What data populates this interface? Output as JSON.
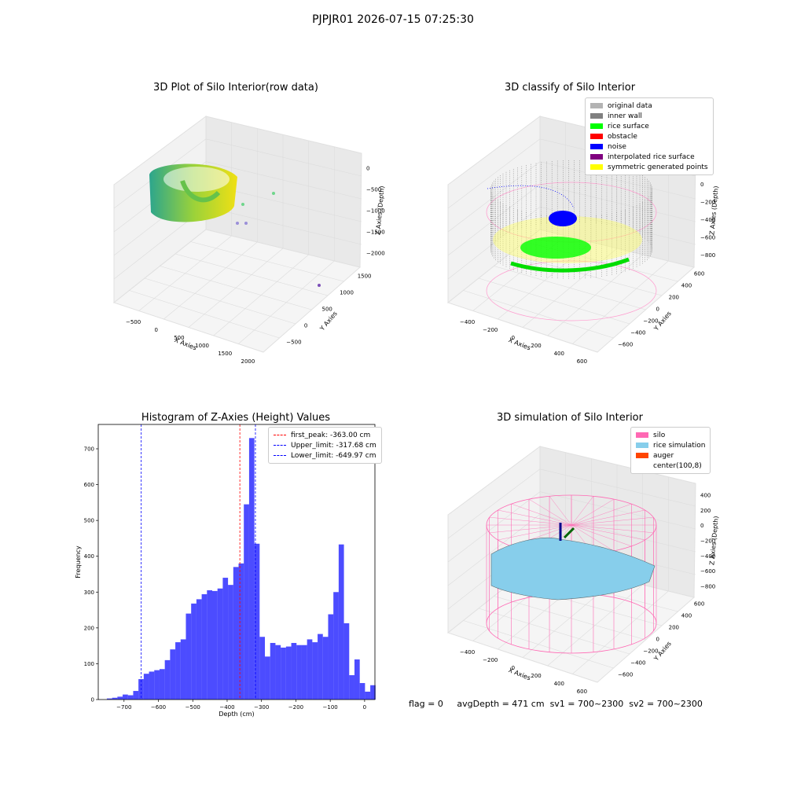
{
  "figure": {
    "suptitle": "PJPJR01 2026-07-15 07:25:30",
    "status": {
      "flag": "flag = 0",
      "avg_depth": "avgDepth = 471 cm",
      "sv1": "sv1 = 700~2300",
      "sv2": "sv2 = 700~2300"
    }
  },
  "panels": {
    "raw": {
      "title": "3D Plot of Silo Interior(row data)",
      "xlabel": "X Axies",
      "ylabel": "Y Axies",
      "zlabel": "Z Axies (Depth)",
      "xticks": [
        "-500",
        "0",
        "500",
        "1000",
        "1500",
        "2000"
      ],
      "yticks": [
        "-500",
        "0",
        "500",
        "1000",
        "1500"
      ],
      "zticks": [
        "0",
        "-500",
        "-1000",
        "-1500",
        "-2000"
      ]
    },
    "classify": {
      "title": "3D classify of Silo Interior",
      "xlabel": "X Axies",
      "ylabel": "Y Axies",
      "zlabel": "Z Axies (Depth)",
      "xticks": [
        "-400",
        "-200",
        "0",
        "200",
        "400",
        "600"
      ],
      "yticks": [
        "-600",
        "-400",
        "-200",
        "0",
        "200",
        "400",
        "600"
      ],
      "zticks": [
        "200",
        "0",
        "-200",
        "-400",
        "-600",
        "-800"
      ],
      "legend": [
        {
          "label": "original data",
          "color": "#b3b3b3"
        },
        {
          "label": "inner wall",
          "color": "#808080"
        },
        {
          "label": "rice surface",
          "color": "#00ff00"
        },
        {
          "label": "obstacle",
          "color": "#ff0000"
        },
        {
          "label": "noise",
          "color": "#0000ff"
        },
        {
          "label": "interpolated rice surface",
          "color": "#800080"
        },
        {
          "label": "symmetric generated points",
          "color": "#ffff00"
        }
      ]
    },
    "simulation": {
      "title": "3D simulation of Silo Interior",
      "xlabel": "X Axies",
      "ylabel": "Y Axies",
      "zlabel": "Z Axies (Depth)",
      "xticks": [
        "-400",
        "-200",
        "0",
        "200",
        "400",
        "600"
      ],
      "yticks": [
        "-600",
        "-400",
        "-200",
        "0",
        "200",
        "400",
        "600"
      ],
      "zticks": [
        "400",
        "200",
        "0",
        "-200",
        "-400",
        "-600",
        "-800"
      ],
      "legend": [
        {
          "label": "silo",
          "color": "#ff69b4"
        },
        {
          "label": "rice simulation",
          "color": "#87ceeb"
        },
        {
          "label": "auger",
          "color": "#ff4500"
        },
        {
          "label": "center(100,8)",
          "color": "#ffffff"
        }
      ]
    }
  },
  "chart_data": {
    "type": "bar",
    "title": "Histogram of Z-Axies (Height) Values",
    "xlabel": "Depth (cm)",
    "ylabel": "Frequency",
    "bar_color": "#0000ff",
    "xlim": [
      -775,
      30
    ],
    "ylim": [
      0,
      768
    ],
    "xticks": [
      -700,
      -600,
      -500,
      -400,
      -300,
      -200,
      -100,
      0
    ],
    "yticks": [
      0,
      100,
      200,
      300,
      400,
      500,
      600,
      700
    ],
    "bin_width": 15.33,
    "bins_start": -750,
    "values": [
      3,
      5,
      8,
      14,
      12,
      24,
      57,
      72,
      78,
      82,
      85,
      110,
      140,
      160,
      168,
      240,
      268,
      280,
      294,
      305,
      303,
      310,
      340,
      320,
      370,
      380,
      545,
      730,
      435,
      175,
      120,
      158,
      152,
      145,
      148,
      158,
      152,
      152,
      168,
      160,
      183,
      175,
      238,
      300,
      433,
      213,
      68,
      112,
      46,
      22,
      40
    ],
    "lines": [
      {
        "label": "first_peak: -363.00 cm",
        "x": -363.0,
        "color": "#ff0000"
      },
      {
        "label": "Upper_limit: -317.68 cm",
        "x": -317.68,
        "color": "#0000ff"
      },
      {
        "label": "Lower_limit: -649.97 cm",
        "x": -649.97,
        "color": "#0000ff"
      }
    ]
  }
}
